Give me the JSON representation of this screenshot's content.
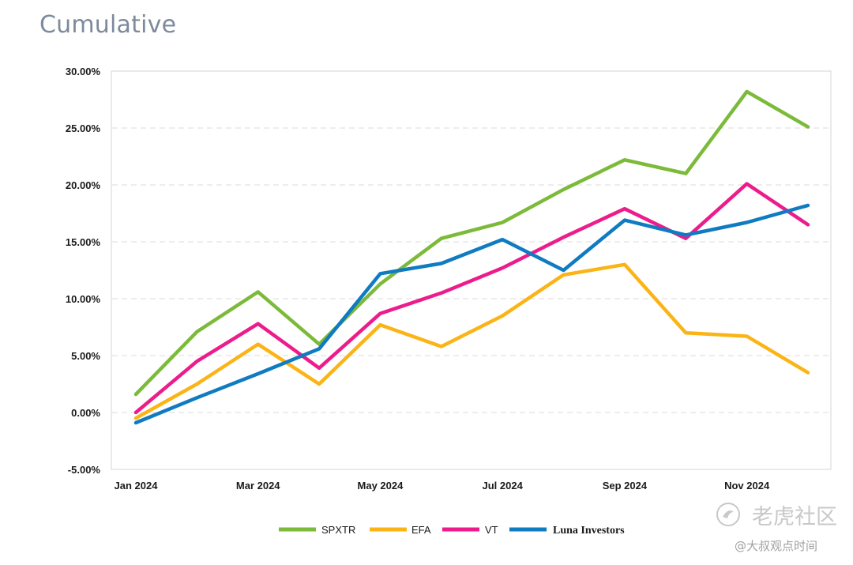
{
  "title": "Cumulative",
  "chart_data": {
    "type": "line",
    "x": [
      "Jan 2024",
      "Feb 2024",
      "Mar 2024",
      "Apr 2024",
      "May 2024",
      "Jun 2024",
      "Jul 2024",
      "Aug 2024",
      "Sep 2024",
      "Oct 2024",
      "Nov 2024",
      "Dec 2024"
    ],
    "x_tick_labels": [
      "Jan 2024",
      "Mar 2024",
      "May 2024",
      "Jul 2024",
      "Sep 2024",
      "Nov 2024"
    ],
    "y_tick_labels": [
      "30.00%",
      "25.00%",
      "20.00%",
      "15.00%",
      "10.00%",
      "5.00%",
      "0.00%",
      "-5.00%"
    ],
    "ylim": [
      -5,
      30
    ],
    "y_unit": "%",
    "grid": "horizontal dashed",
    "legend_position": "bottom",
    "series": [
      {
        "name": "SPXTR",
        "color": "#7cba3a",
        "values": [
          1.6,
          7.1,
          10.6,
          6.0,
          11.3,
          15.3,
          16.7,
          19.6,
          22.2,
          21.0,
          28.2,
          25.1
        ]
      },
      {
        "name": "EFA",
        "color": "#fbb416",
        "values": [
          -0.5,
          2.5,
          6.0,
          2.5,
          7.7,
          5.8,
          8.5,
          12.1,
          13.0,
          7.0,
          6.7,
          3.5
        ]
      },
      {
        "name": "VT",
        "color": "#ec1c8c",
        "values": [
          0.0,
          4.5,
          7.8,
          3.9,
          8.7,
          10.5,
          12.7,
          15.4,
          17.9,
          15.3,
          20.1,
          16.5
        ]
      },
      {
        "name": "Luna Investors",
        "color": "#0f7bc1",
        "values": [
          -0.9,
          1.3,
          3.4,
          5.6,
          12.2,
          13.1,
          15.2,
          12.5,
          16.9,
          15.6,
          16.7,
          18.2
        ]
      }
    ]
  },
  "watermark": {
    "name": "老虎社区",
    "handle": "@大叔观点时间"
  }
}
